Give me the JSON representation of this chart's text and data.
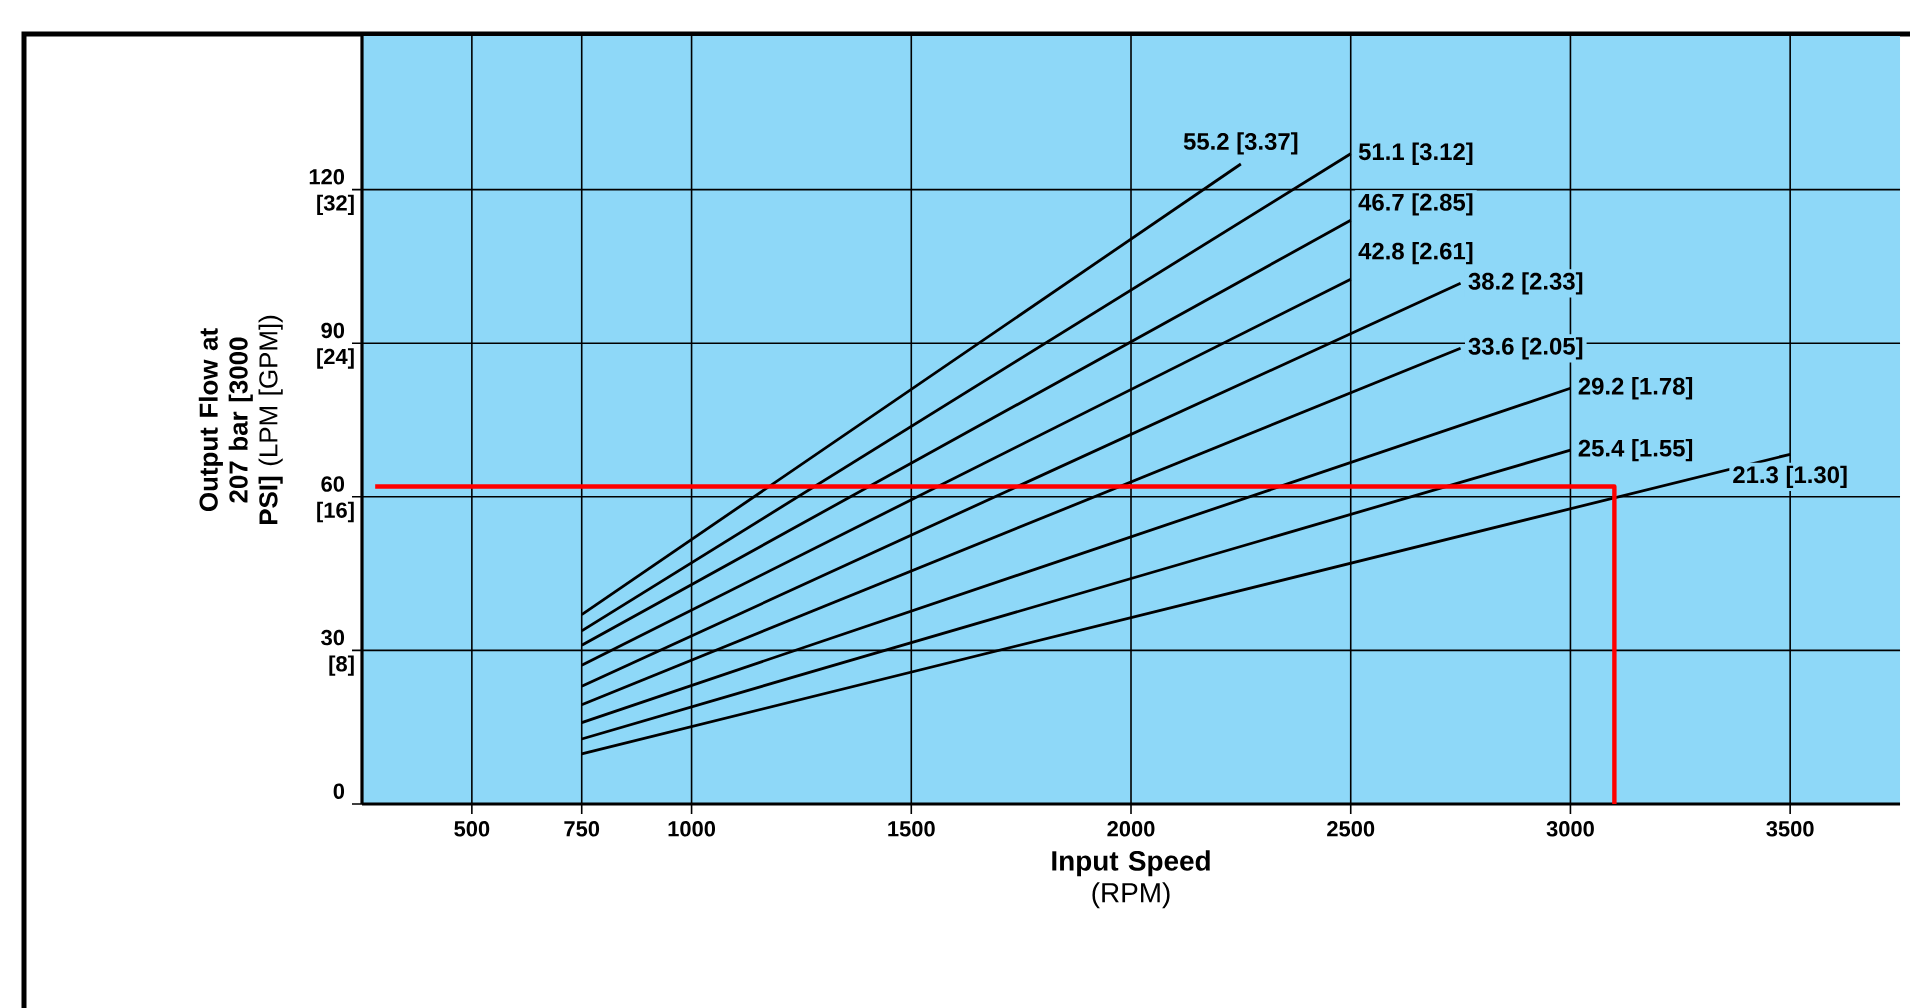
{
  "chart_data": {
    "type": "line",
    "xlabel": "**Input Speed** (RPM)",
    "ylabel": "**Output Flow at 207 bar [3000 PSI]** (LPM [GPM])",
    "xlim": [
      250,
      3750
    ],
    "ylim": [
      0,
      150
    ],
    "xticks": [
      500,
      750,
      1000,
      1500,
      2000,
      2500,
      3000,
      3500
    ],
    "yticks": [
      0,
      30,
      60,
      90,
      120
    ],
    "y2lim": [
      0,
      40
    ],
    "y2ticks": [
      {
        "value": 8,
        "label": "[8]"
      },
      {
        "value": 16,
        "label": "[16]"
      },
      {
        "value": 24,
        "label": "[24]"
      },
      {
        "value": 32,
        "label": "[32]"
      }
    ],
    "grid": true,
    "line_style": "solid",
    "series": [
      {
        "name": "55.2 [3.37]",
        "color": "#000000",
        "x": [
          750,
          2250
        ],
        "values": [
          37.0,
          125
        ]
      },
      {
        "name": "51.1 [3.12]",
        "color": "#000000",
        "x": [
          750,
          2500
        ],
        "values": [
          33.8,
          127
        ]
      },
      {
        "name": "46.7 [2.85]",
        "color": "#000000",
        "x": [
          750,
          2500
        ],
        "values": [
          31.0,
          114
        ]
      },
      {
        "name": "42.8 [2.61]",
        "color": "#000000",
        "x": [
          750,
          2500
        ],
        "values": [
          27.1,
          102.5
        ]
      },
      {
        "name": "38.2 [2.33]",
        "color": "#000000",
        "x": [
          750,
          2750
        ],
        "values": [
          23.0,
          101.7
        ]
      },
      {
        "name": "33.6 [2.05]",
        "color": "#000000",
        "x": [
          750,
          2750
        ],
        "values": [
          19.4,
          89
        ]
      },
      {
        "name": "29.2 [1.78]",
        "color": "#000000",
        "x": [
          750,
          3000
        ],
        "values": [
          15.9,
          81.2
        ]
      },
      {
        "name": "25.4 [1.55]",
        "color": "#000000",
        "x": [
          750,
          3000
        ],
        "values": [
          12.7,
          69.1
        ]
      },
      {
        "name": "21.3 [1.30]",
        "color": "#000000",
        "x": [
          750,
          3500
        ],
        "values": [
          9.8,
          68.3
        ]
      },
      {
        "color": "#ff0000",
        "x": [
          280,
          3100,
          3100
        ],
        "values": [
          62,
          62,
          0
        ]
      }
    ]
  }
}
